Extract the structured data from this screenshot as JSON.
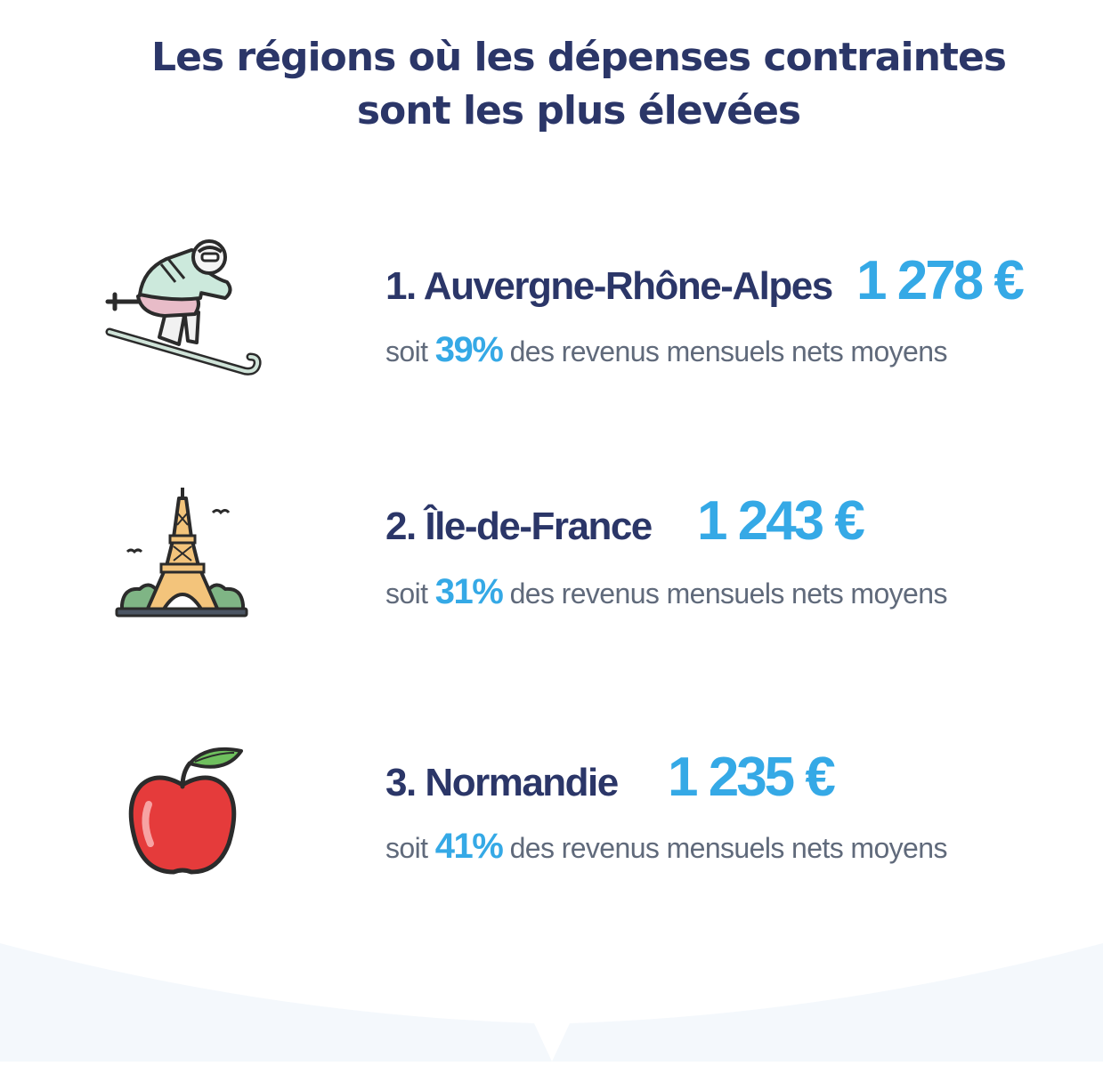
{
  "title": {
    "line1": "Les régions où les dépenses contraintes",
    "line2": "sont les plus élevées"
  },
  "regions": [
    {
      "rank_label": "1. Auvergne-Rhône-Alpes",
      "amount": "1 278 €",
      "prefix": "soit",
      "percent": "39%",
      "suffix": "des revenus mensuels nets moyens",
      "icon": "skier-icon"
    },
    {
      "rank_label": "2. Île-de-France",
      "amount": "1 243 €",
      "prefix": "soit",
      "percent": "31%",
      "suffix": "des revenus mensuels nets moyens",
      "icon": "eiffel-tower-icon"
    },
    {
      "rank_label": "3. Normandie",
      "amount": "1 235 €",
      "prefix": "soit",
      "percent": "41%",
      "suffix": "des revenus mensuels nets moyens",
      "icon": "apple-icon"
    }
  ],
  "colors": {
    "title": "#2b3668",
    "accent": "#35a9e6",
    "body_text": "#606a7b",
    "bottom_band": "#f4f8fc"
  }
}
